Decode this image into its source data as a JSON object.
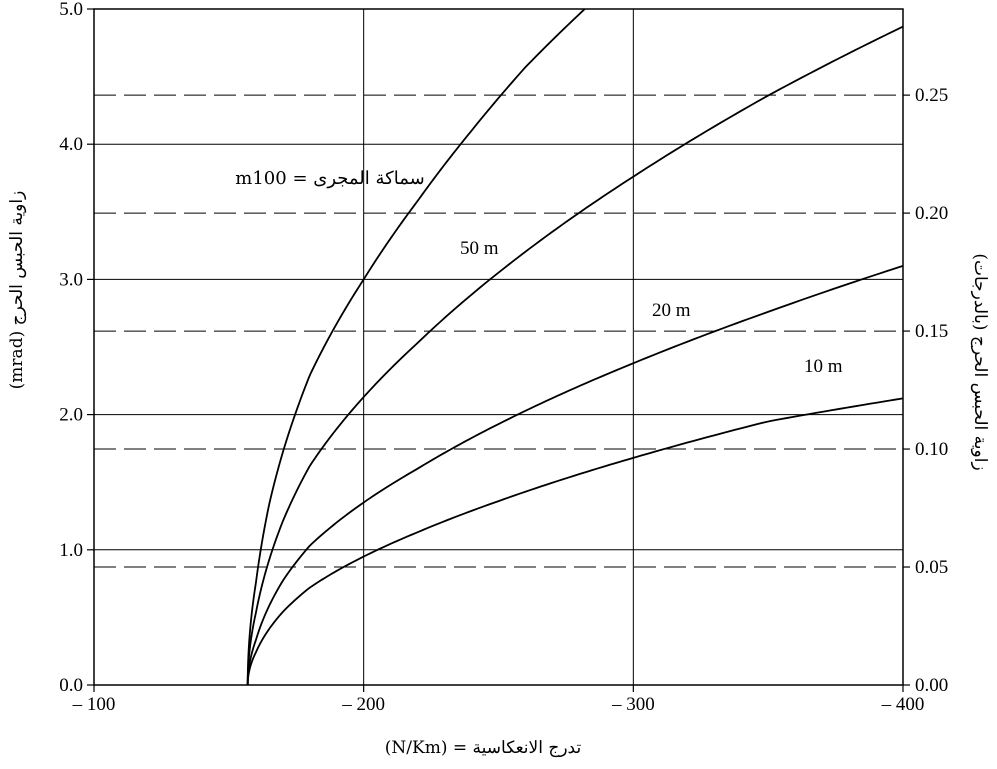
{
  "chart_data": {
    "type": "line",
    "title": "",
    "xlabel": "تدرج الانعكاسية = (N/Km)",
    "ylabel_left": "زاوية الحبس الحرج (mrad)",
    "ylabel_right": "زاوية الحبس الحرج (بالدرجات)",
    "xlim": [
      -100,
      -400
    ],
    "ylim": [
      0,
      5
    ],
    "y2lim": [
      0,
      0.2865
    ],
    "x_ticks": [
      -100,
      -200,
      -300,
      -400
    ],
    "x_tick_labels": [
      "– 100",
      "– 200",
      "– 300",
      "– 400"
    ],
    "y_ticks": [
      0,
      1,
      2,
      3,
      4,
      5
    ],
    "y_tick_labels": [
      "0.0",
      "1.0",
      "2.0",
      "3.0",
      "4.0",
      "5.0"
    ],
    "y2_ticks": [
      0,
      0.05,
      0.1,
      0.15,
      0.2,
      0.25
    ],
    "y2_tick_labels": [
      "0.00",
      "0.05",
      "0.10",
      "0.15",
      "0.20",
      "0.25"
    ],
    "grid": true,
    "x_intercept": -157,
    "series": [
      {
        "name": "سماكة المجرى = 100m",
        "thickness_m": 100,
        "x": [
          -157,
          -160,
          -165,
          -170,
          -180,
          -200,
          -220,
          -240,
          -260,
          -282
        ],
        "values": [
          0,
          0.75,
          1.34,
          1.72,
          2.29,
          3.0,
          3.58,
          4.1,
          4.57,
          5.0
        ]
      },
      {
        "name": "50 m",
        "thickness_m": 50,
        "x": [
          -157,
          -160,
          -170,
          -180,
          -200,
          -220,
          -250,
          -300,
          -350,
          -400
        ],
        "values": [
          0,
          0.53,
          1.21,
          1.62,
          2.13,
          2.53,
          3.05,
          3.76,
          4.36,
          4.87
        ]
      },
      {
        "name": "20 m",
        "thickness_m": 20,
        "x": [
          -157,
          -160,
          -170,
          -180,
          -200,
          -220,
          -250,
          -300,
          -350,
          -400
        ],
        "values": [
          0,
          0.33,
          0.77,
          1.03,
          1.35,
          1.6,
          1.93,
          2.38,
          2.76,
          3.1
        ]
      },
      {
        "name": "10 m",
        "thickness_m": 10,
        "x": [
          -157,
          -160,
          -170,
          -180,
          -200,
          -220,
          -250,
          -300,
          -350,
          -400
        ],
        "values": [
          0,
          0.24,
          0.54,
          0.72,
          0.95,
          1.13,
          1.36,
          1.68,
          1.95,
          2.12
        ]
      }
    ],
    "annotations": [
      {
        "text": "سماكة المجرى = m100",
        "series": 0
      },
      {
        "text": "50 m",
        "series": 1
      },
      {
        "text": "20 m",
        "series": 2
      },
      {
        "text": "10 m",
        "series": 3
      }
    ]
  }
}
